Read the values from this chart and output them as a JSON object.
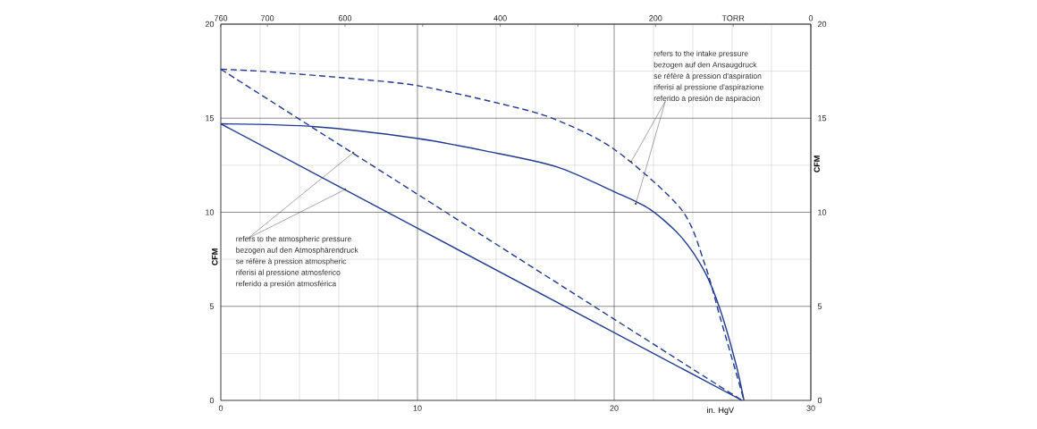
{
  "chart_data": {
    "type": "line",
    "xlabel": "in. HgV",
    "ylabel": "CFM",
    "y2label": "CFM",
    "xlim": [
      0,
      30
    ],
    "xticks": [
      0,
      10,
      20,
      30
    ],
    "ylim": [
      0,
      20
    ],
    "yticks": [
      0,
      5,
      10,
      15,
      20
    ],
    "y2lim": [
      0,
      20
    ],
    "y2ticks": [
      0,
      5,
      10,
      15,
      20
    ],
    "x2lim": [
      760,
      0
    ],
    "x2ticks": [
      760,
      700,
      600,
      {
        "value": 500,
        "label": null
      },
      400,
      {
        "value": 300,
        "label": null
      },
      200,
      {
        "value": 100,
        "label": "TORR"
      },
      0
    ],
    "grid": true,
    "marker": "none",
    "series": [
      {
        "color": "#1f3a8f",
        "line_style": "dashed",
        "x": [
          0,
          2.0,
          6.2,
          9.95,
          14.1,
          16.9,
          20.0,
          23.4,
          24.6,
          25.4,
          26.2,
          26.6
        ],
        "values": [
          17.6,
          17.5,
          17.15,
          16.74,
          15.8,
          14.98,
          13.35,
          10.17,
          7.27,
          4.37,
          1.47,
          0
        ]
      },
      {
        "color": "#1f3a8f",
        "line_style": "solid",
        "x": [
          0,
          4.8,
          9.95,
          13.5,
          17.07,
          20.04,
          21.8,
          23.4,
          24.6,
          25.4,
          26.2,
          26.6
        ],
        "values": [
          14.7,
          14.55,
          13.93,
          13.25,
          12.42,
          11.08,
          10.17,
          8.7,
          6.85,
          4.8,
          1.9,
          0
        ]
      },
      {
        "color": "#1f3a8f",
        "line_style": "dashed",
        "x": [
          0,
          26.5
        ],
        "values": [
          17.6,
          0
        ]
      },
      {
        "color": "#1f3a8f",
        "line_style": "solid",
        "x": [
          0,
          26.5
        ],
        "values": [
          14.7,
          0
        ]
      }
    ],
    "annotations": [
      "refers to the intake pressure",
      "bezogen auf den Ansaugdruck",
      "se réfère à pression d'aspiration",
      "riferisi al pressione d'aspirazione",
      {
        "text": "referido a presión de aspiracion",
        "x": 21.1,
        "y": 10.45
      },
      {
        "text": "refers to the atmospheric pressure",
        "x": 6.73,
        "y": 13.16
      },
      {
        "text": "bezogen auf den Atmosphärendruck",
        "x": 6.32,
        "y": 11.21
      },
      "se réfère à pression atmospheric",
      "riferisi al pressione atmosferico",
      "referido a presión atmosférica"
    ]
  }
}
